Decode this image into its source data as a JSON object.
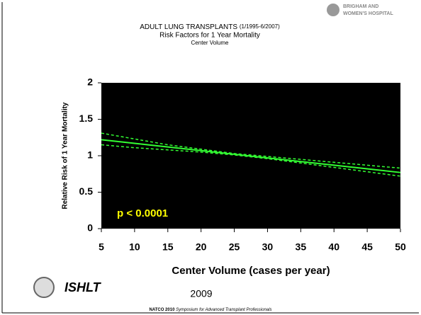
{
  "slide": {
    "logo": [
      "BRIGHAM AND",
      "WOMEN'S HOSPITAL"
    ],
    "org": "ISHLT",
    "year": "2009",
    "footer_bold": "NATCO 2010",
    "footer_italic": "Symposium for Advanced Transplant Professionals"
  },
  "chart_data": {
    "type": "line",
    "title": "ADULT LUNG TRANSPLANTS",
    "title_note": "(1/1995-6/2007)",
    "subtitle": "Risk Factors for 1 Year Mortality",
    "subtitle2": "Center Volume",
    "x_label": "Center Volume (cases per year)",
    "y_label": "Relative Risk of 1 Year Mortality",
    "annotation": "p < 0.0001",
    "annotation_color": "#ffff00",
    "background": "#000000",
    "x": [
      5,
      10,
      15,
      20,
      25,
      30,
      35,
      40,
      45,
      50
    ],
    "series": [
      {
        "color": "#33ff33",
        "dashed": false,
        "values": [
          1.22,
          1.17,
          1.12,
          1.07,
          1.02,
          0.97,
          0.92,
          0.87,
          0.82,
          0.77
        ]
      },
      {
        "color": "#33ff33",
        "dashed": true,
        "values": [
          1.31,
          1.23,
          1.15,
          1.09,
          1.03,
          0.99,
          0.95,
          0.91,
          0.87,
          0.83
        ]
      },
      {
        "color": "#33ff33",
        "dashed": true,
        "values": [
          1.15,
          1.11,
          1.08,
          1.05,
          1.01,
          0.96,
          0.9,
          0.84,
          0.78,
          0.72
        ]
      }
    ],
    "xlim": [
      5,
      50
    ],
    "xticks": [
      5,
      10,
      15,
      20,
      25,
      30,
      35,
      40,
      45,
      50
    ],
    "ylim": [
      0,
      2
    ],
    "yticks": [
      0,
      0.5,
      1,
      1.5,
      2
    ]
  }
}
